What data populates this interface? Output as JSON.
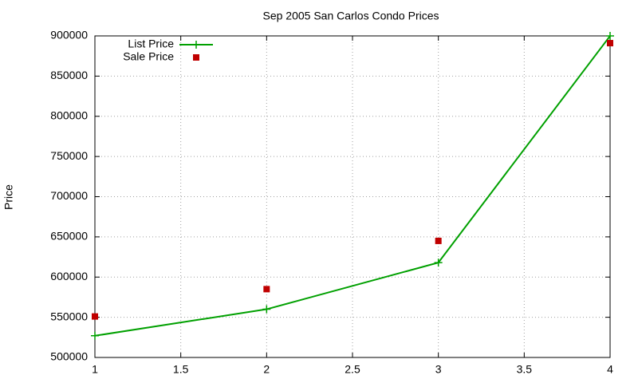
{
  "chart_data": {
    "type": "line",
    "title": "Sep 2005 San Carlos Condo Prices",
    "y_label": "Price",
    "x": [
      1,
      2,
      3,
      4
    ],
    "series": [
      {
        "name": "List Price",
        "color": "#00a000",
        "mode": "lines+points",
        "marker": "plus",
        "values": [
          527000,
          560000,
          618000,
          900000
        ]
      },
      {
        "name": "Sale Price",
        "color": "#c00000",
        "mode": "points",
        "marker": "square",
        "values": [
          551000,
          585000,
          645000,
          891000
        ]
      }
    ],
    "xlim": [
      1,
      4
    ],
    "xticks": [
      1,
      1.5,
      2,
      2.5,
      3,
      3.5,
      4
    ],
    "ylim": [
      500000,
      900000
    ],
    "yticks": [
      500000,
      550000,
      600000,
      650000,
      700000,
      750000,
      800000,
      850000,
      900000
    ],
    "grid": true,
    "legend": "top-left"
  }
}
